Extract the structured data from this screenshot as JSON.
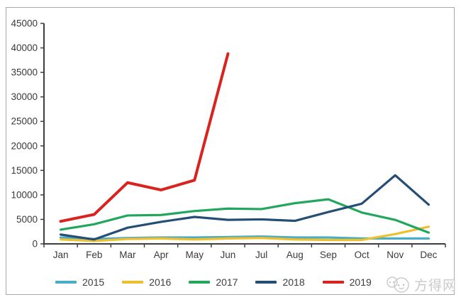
{
  "chart_data": {
    "type": "line",
    "categories": [
      "Jan",
      "Feb",
      "Mar",
      "Apr",
      "May",
      "Jun",
      "Jul",
      "Aug",
      "Sep",
      "Oct",
      "Nov",
      "Dec"
    ],
    "series": [
      {
        "name": "2015",
        "color": "#4bacc6",
        "values": [
          1300,
          1000,
          1200,
          1300,
          1300,
          1400,
          1500,
          1300,
          1300,
          1100,
          1100,
          1100
        ]
      },
      {
        "name": "2016",
        "color": "#ecc02f",
        "values": [
          900,
          600,
          1000,
          1100,
          900,
          1100,
          1200,
          900,
          800,
          800,
          2000,
          3500
        ]
      },
      {
        "name": "2017",
        "color": "#22a75d",
        "values": [
          2900,
          4000,
          5800,
          5900,
          6700,
          7200,
          7100,
          8300,
          9100,
          6400,
          4900,
          2300
        ]
      },
      {
        "name": "2018",
        "color": "#254e77",
        "values": [
          1900,
          900,
          3300,
          4500,
          5500,
          4900,
          5000,
          4700,
          6500,
          8200,
          14000,
          8000
        ]
      },
      {
        "name": "2019",
        "color": "#d9231f",
        "thick": true,
        "values": [
          4600,
          6000,
          12500,
          11000,
          13000,
          38800,
          null,
          null,
          null,
          null,
          null,
          null
        ]
      }
    ],
    "title": "",
    "xlabel": "",
    "ylabel": "",
    "ylim": [
      0,
      45000
    ],
    "yticks": [
      0,
      5000,
      10000,
      15000,
      20000,
      25000,
      30000,
      35000,
      40000,
      45000
    ],
    "grid": false,
    "legend_position": "bottom"
  },
  "legend": {
    "items": [
      "2015",
      "2016",
      "2017",
      "2018",
      "2019"
    ]
  },
  "watermark": {
    "icon": "two-smileys-logo-icon",
    "text": "方得网"
  },
  "colors": {
    "axis": "#3f3f3f",
    "tick_label": "#3a3a3a",
    "frame_border": "#a8a8a8",
    "watermark": "#c9c9c9"
  }
}
